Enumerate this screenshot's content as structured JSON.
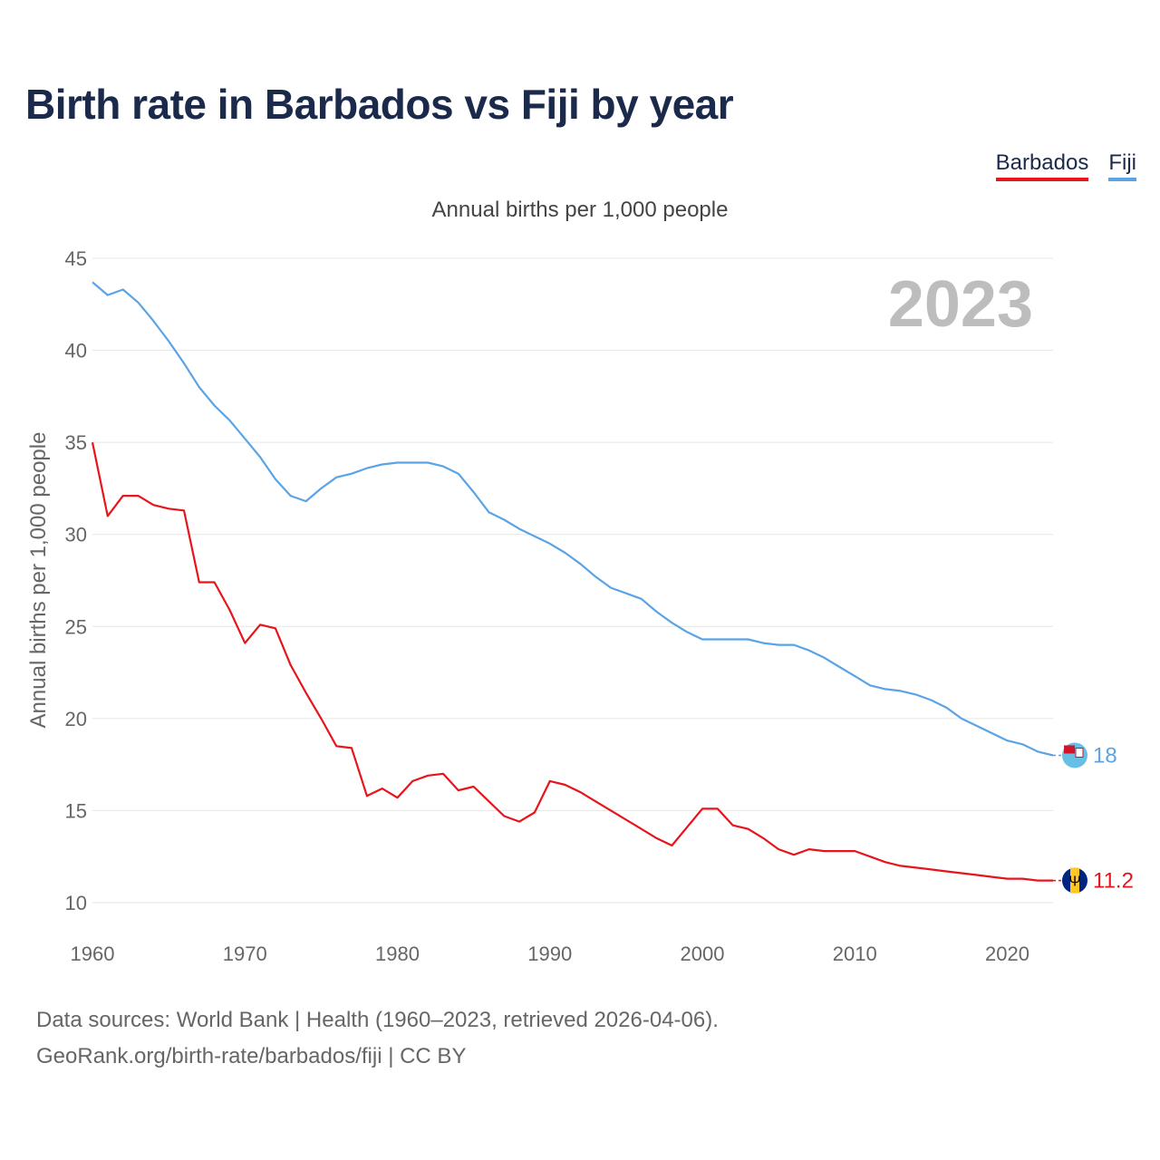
{
  "title": "Birth rate in Barbados vs Fiji by year",
  "subtitle": "Annual births per 1,000 people",
  "footer": {
    "line1": "Data sources: World Bank | Health (1960–2023, retrieved 2026-04-06).",
    "line2": "GeoRank.org/birth-rate/barbados/fiji | CC BY"
  },
  "legend": {
    "barbados": "Barbados",
    "fiji": "Fiji"
  },
  "colors": {
    "barbados": "#e8141b",
    "fiji": "#5aa4e6",
    "grid": "#e6e6e6",
    "year": "#bdbdbd"
  },
  "chart_data": {
    "type": "line",
    "title": "Birth rate in Barbados vs Fiji by year",
    "xlabel": "",
    "ylabel": "Annual births per 1,000 people",
    "xlim": [
      1960,
      2023
    ],
    "ylim": [
      10,
      45
    ],
    "x_ticks": [
      "1960",
      "1970",
      "1980",
      "1990",
      "2000",
      "2010",
      "2020"
    ],
    "y_ticks": [
      "10",
      "15",
      "20",
      "25",
      "30",
      "35",
      "40",
      "45"
    ],
    "year_label": "2023",
    "x": [
      1960,
      1961,
      1962,
      1963,
      1964,
      1965,
      1966,
      1967,
      1968,
      1969,
      1970,
      1971,
      1972,
      1973,
      1974,
      1975,
      1976,
      1977,
      1978,
      1979,
      1980,
      1981,
      1982,
      1983,
      1984,
      1985,
      1986,
      1987,
      1988,
      1989,
      1990,
      1991,
      1992,
      1993,
      1994,
      1995,
      1996,
      1997,
      1998,
      1999,
      2000,
      2001,
      2002,
      2003,
      2004,
      2005,
      2006,
      2007,
      2008,
      2009,
      2010,
      2011,
      2012,
      2013,
      2014,
      2015,
      2016,
      2017,
      2018,
      2019,
      2020,
      2021,
      2022,
      2023
    ],
    "series": [
      {
        "name": "Barbados",
        "end_label": "11.2",
        "values": [
          35.0,
          31.0,
          32.1,
          32.1,
          31.6,
          31.4,
          31.3,
          27.4,
          27.4,
          25.9,
          24.1,
          25.1,
          24.9,
          22.9,
          21.4,
          20.0,
          18.5,
          18.4,
          15.8,
          16.2,
          15.7,
          16.6,
          16.9,
          17.0,
          16.1,
          16.3,
          15.5,
          14.7,
          14.4,
          14.9,
          16.6,
          16.4,
          16.0,
          15.5,
          15.0,
          14.5,
          14.0,
          13.5,
          13.1,
          14.1,
          15.1,
          15.1,
          14.2,
          14.0,
          13.5,
          12.9,
          12.6,
          12.9,
          12.8,
          12.8,
          12.8,
          12.5,
          12.2,
          12.0,
          11.9,
          11.8,
          11.7,
          11.6,
          11.5,
          11.4,
          11.3,
          11.3,
          11.2,
          11.2
        ]
      },
      {
        "name": "Fiji",
        "end_label": "18",
        "values": [
          43.7,
          43.0,
          43.3,
          42.6,
          41.6,
          40.5,
          39.3,
          38.0,
          37.0,
          36.2,
          35.2,
          34.2,
          33.0,
          32.1,
          31.8,
          32.5,
          33.1,
          33.3,
          33.6,
          33.8,
          33.9,
          33.9,
          33.9,
          33.7,
          33.3,
          32.3,
          31.2,
          30.8,
          30.3,
          29.9,
          29.5,
          29.0,
          28.4,
          27.7,
          27.1,
          26.8,
          26.5,
          25.8,
          25.2,
          24.7,
          24.3,
          24.3,
          24.3,
          24.3,
          24.1,
          24.0,
          24.0,
          23.7,
          23.3,
          22.8,
          22.3,
          21.8,
          21.6,
          21.5,
          21.3,
          21.0,
          20.6,
          20.0,
          19.6,
          19.2,
          18.8,
          18.6,
          18.2,
          18.0
        ]
      }
    ]
  }
}
